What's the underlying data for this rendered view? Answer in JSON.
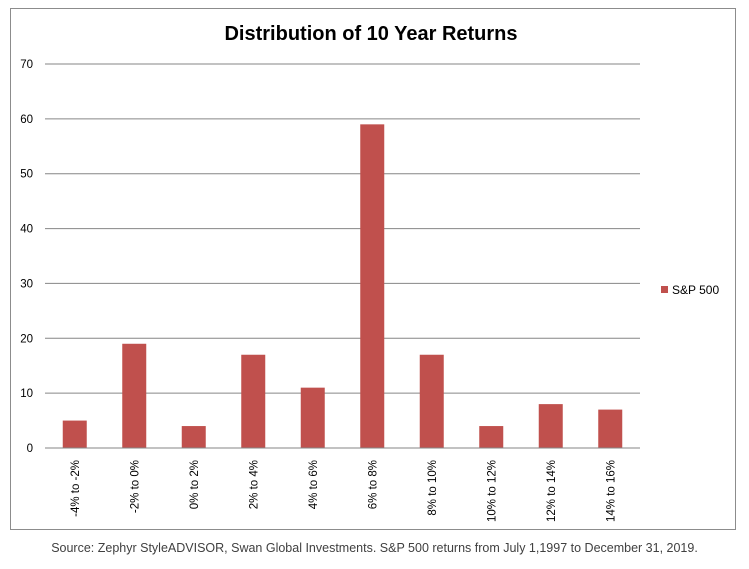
{
  "chart_data": {
    "type": "bar",
    "title": "Distribution of 10 Year Returns",
    "xlabel": "",
    "ylabel": "",
    "categories": [
      "-4% to -2%",
      "-2% to 0%",
      "0% to 2%",
      "2% to 4%",
      "4% to 6%",
      "6% to 8%",
      "8% to 10%",
      "10% to 12%",
      "12% to 14%",
      "14% to 16%"
    ],
    "series": [
      {
        "name": "S&P 500",
        "values": [
          5,
          19,
          4,
          17,
          11,
          59,
          17,
          4,
          8,
          7
        ],
        "color": "#C0504D"
      }
    ],
    "ylim": [
      0,
      70
    ],
    "yticks": [
      0,
      10,
      20,
      30,
      40,
      50,
      60,
      70
    ],
    "grid": true,
    "legend_position": "right"
  },
  "source_note": "Source: Zephyr StyleADVISOR, Swan Global Investments. S&P 500 returns from July 1,1997 to December 31, 2019."
}
